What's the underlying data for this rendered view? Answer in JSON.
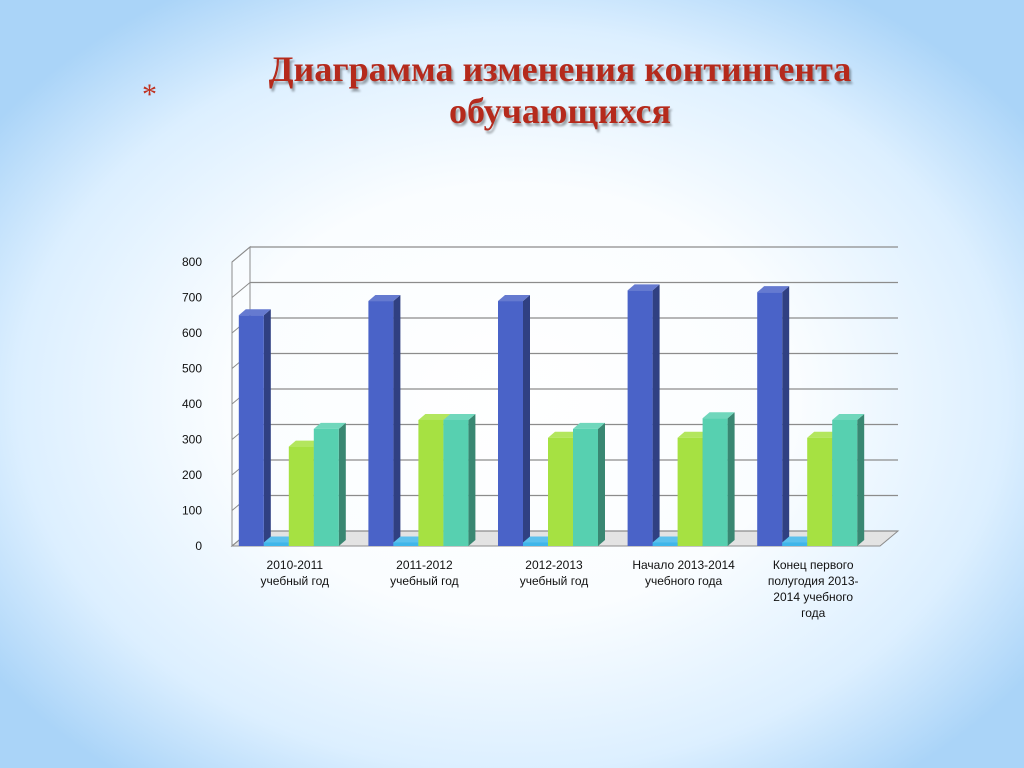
{
  "slide": {
    "bullet": "*",
    "title_line1": "Диаграмма  изменения контингента",
    "title_line2": "обучающихся"
  },
  "chart_data": {
    "type": "bar",
    "title": "Диаграмма  изменения контингента обучающихся",
    "categories": [
      [
        "2010-2011",
        "учебный год"
      ],
      [
        "2011-2012",
        "учебный год"
      ],
      [
        "2012-2013",
        "учебный год"
      ],
      [
        "Начало 2013-2014",
        "учебного года"
      ],
      [
        "Конец первого",
        "полугодия 2013-",
        "2014 учебного",
        "года"
      ]
    ],
    "series": [
      {
        "color": "#4a63c8",
        "values": [
          650,
          690,
          690,
          720,
          715
        ]
      },
      {
        "color": "#3fb6ea",
        "values": [
          10,
          10,
          10,
          10,
          10
        ]
      },
      {
        "color": "#a6e142",
        "values": [
          280,
          355,
          305,
          305,
          305
        ]
      },
      {
        "color": "#57d0b0",
        "values": [
          330,
          355,
          330,
          360,
          355
        ]
      }
    ],
    "ylim": [
      0,
      800
    ],
    "yticks": [
      0,
      100,
      200,
      300,
      400,
      500,
      600,
      700,
      800
    ],
    "grid": true,
    "legend": "none",
    "style": "3d-column"
  }
}
